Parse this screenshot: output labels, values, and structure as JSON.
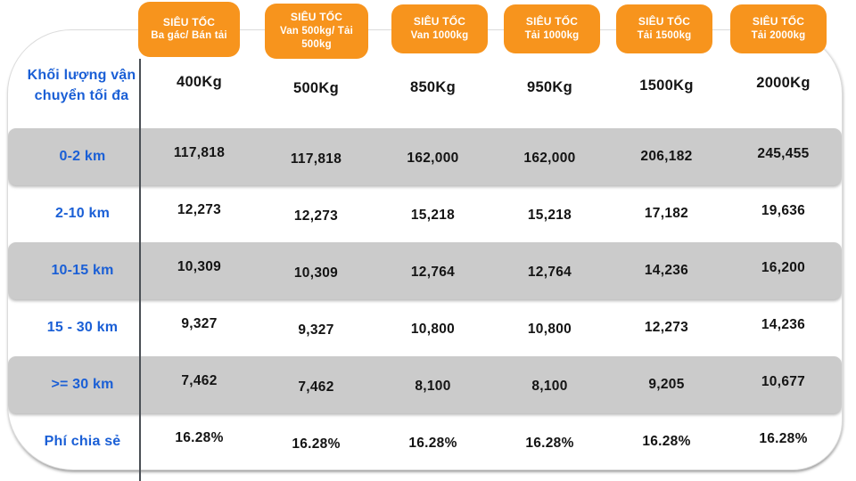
{
  "chart_data": {
    "type": "table",
    "corner_header": "Khối lượng vận chuyển tối đa",
    "columns": [
      {
        "service": "SIÊU TỐC",
        "vehicle": "Ba gác/ Bán tải",
        "max_load": "400Kg"
      },
      {
        "service": "SIÊU TỐC",
        "vehicle": "Van 500kg/ Tải 500kg",
        "max_load": "500Kg"
      },
      {
        "service": "SIÊU TỐC",
        "vehicle": "Van 1000kg",
        "max_load": "850Kg"
      },
      {
        "service": "SIÊU TỐC",
        "vehicle": "Tải 1000kg",
        "max_load": "950Kg"
      },
      {
        "service": "SIÊU TỐC",
        "vehicle": "Tải 1500kg",
        "max_load": "1500Kg"
      },
      {
        "service": "SIÊU TỐC",
        "vehicle": "Tải 2000kg",
        "max_load": "2000Kg"
      }
    ],
    "rows": [
      {
        "label": "0-2 km",
        "values": [
          "117,818",
          "117,818",
          "162,000",
          "162,000",
          "206,182",
          "245,455"
        ]
      },
      {
        "label": "2-10 km",
        "values": [
          "12,273",
          "12,273",
          "15,218",
          "15,218",
          "17,182",
          "19,636"
        ]
      },
      {
        "label": "10-15 km",
        "values": [
          "10,309",
          "10,309",
          "12,764",
          "12,764",
          "14,236",
          "16,200"
        ]
      },
      {
        "label": "15 - 30 km",
        "values": [
          "9,327",
          "9,327",
          "10,800",
          "10,800",
          "12,273",
          "14,236"
        ]
      },
      {
        "label": ">= 30 km",
        "values": [
          "7,462",
          "7,462",
          "8,100",
          "8,100",
          "9,205",
          "10,677"
        ]
      },
      {
        "label": "Phí chia sẻ",
        "values": [
          "16.28%",
          "16.28%",
          "16.28%",
          "16.28%",
          "16.28%",
          "16.28%"
        ]
      }
    ],
    "colors": {
      "badge_orange": "#F7941D",
      "label_blue": "#1A5FD6",
      "stripe_gray": "#CBCBCB",
      "value_black": "#141414",
      "divider_dark": "#4A4F55"
    }
  }
}
